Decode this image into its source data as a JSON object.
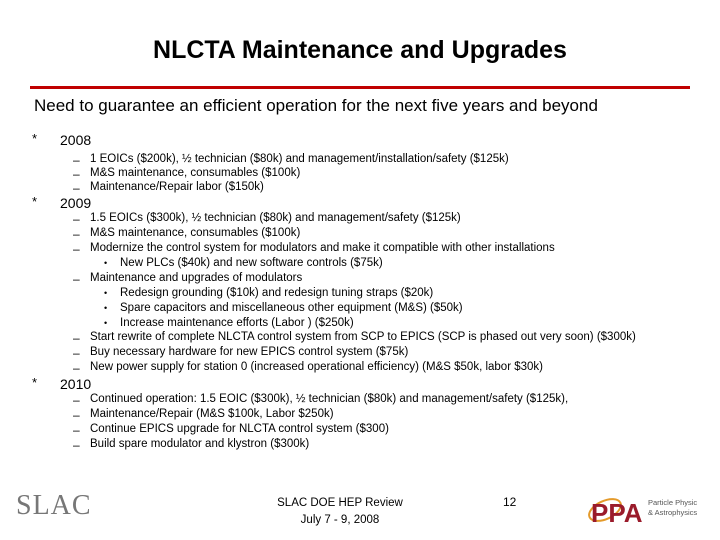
{
  "title": "NLCTA Maintenance and Upgrades",
  "intro": "Need to guarantee an efficient operation for the next five years and beyond",
  "bullet_star": "*",
  "dash": "–",
  "dot": "•",
  "sections": [
    {
      "year": "2008",
      "items": [
        "1 EOICs ($200k), ½ technician ($80k) and management/installation/safety ($125k)",
        "M&S maintenance, consumables ($100k)",
        "Maintenance/Repair labor ($150k)"
      ]
    },
    {
      "year": "2009",
      "items": [
        "1.5 EOICs ($300k), ½ technician ($80k) and management/safety ($125k)",
        "M&S maintenance, consumables ($100k)",
        "Modernize the control system for modulators and make it compatible with other installations",
        "Maintenance and upgrades of modulators",
        "Start rewrite of complete NLCTA control system from SCP to EPICS (SCP is phased out very soon) ($300k)",
        "Buy necessary hardware for new EPICS control system ($75k)",
        "New power supply for station 0 (increased operational efficiency) (M&S $50k, labor $30k)"
      ],
      "sub_control": [
        "New PLCs  ($40k) and new software controls ($75k)"
      ],
      "sub_modulators": [
        "Redesign grounding  ($10k)  and redesign tuning straps  ($20k)",
        "Spare capacitors and miscellaneous other equipment (M&S) ($50k)",
        "Increase maintenance efforts (Labor ) ($250k)"
      ]
    },
    {
      "year": "2010",
      "items": [
        "Continued operation: 1.5 EOIC ($300k), ½ technician ($80k) and management/safety ($125k),",
        "Maintenance/Repair (M&S $100k, Labor $250k)",
        "Continue EPICS upgrade for NLCTA control system ($300)",
        "Build spare modulator and klystron ($300k)"
      ]
    }
  ],
  "footer": {
    "logo_text": "SLAC",
    "line1": "SLAC DOE HEP Review",
    "line2": "July 7 - 9, 2008",
    "page_number": "12",
    "ppa_logo": "PPA",
    "ppa_caption_1": "Particle Physics",
    "ppa_caption_2": "& Astrophysics"
  },
  "colors": {
    "rule": "#c00000",
    "ppa_text": "#9a1b2b",
    "ppa_orbit": "#e49a2a",
    "slac_gray": "#777777"
  }
}
